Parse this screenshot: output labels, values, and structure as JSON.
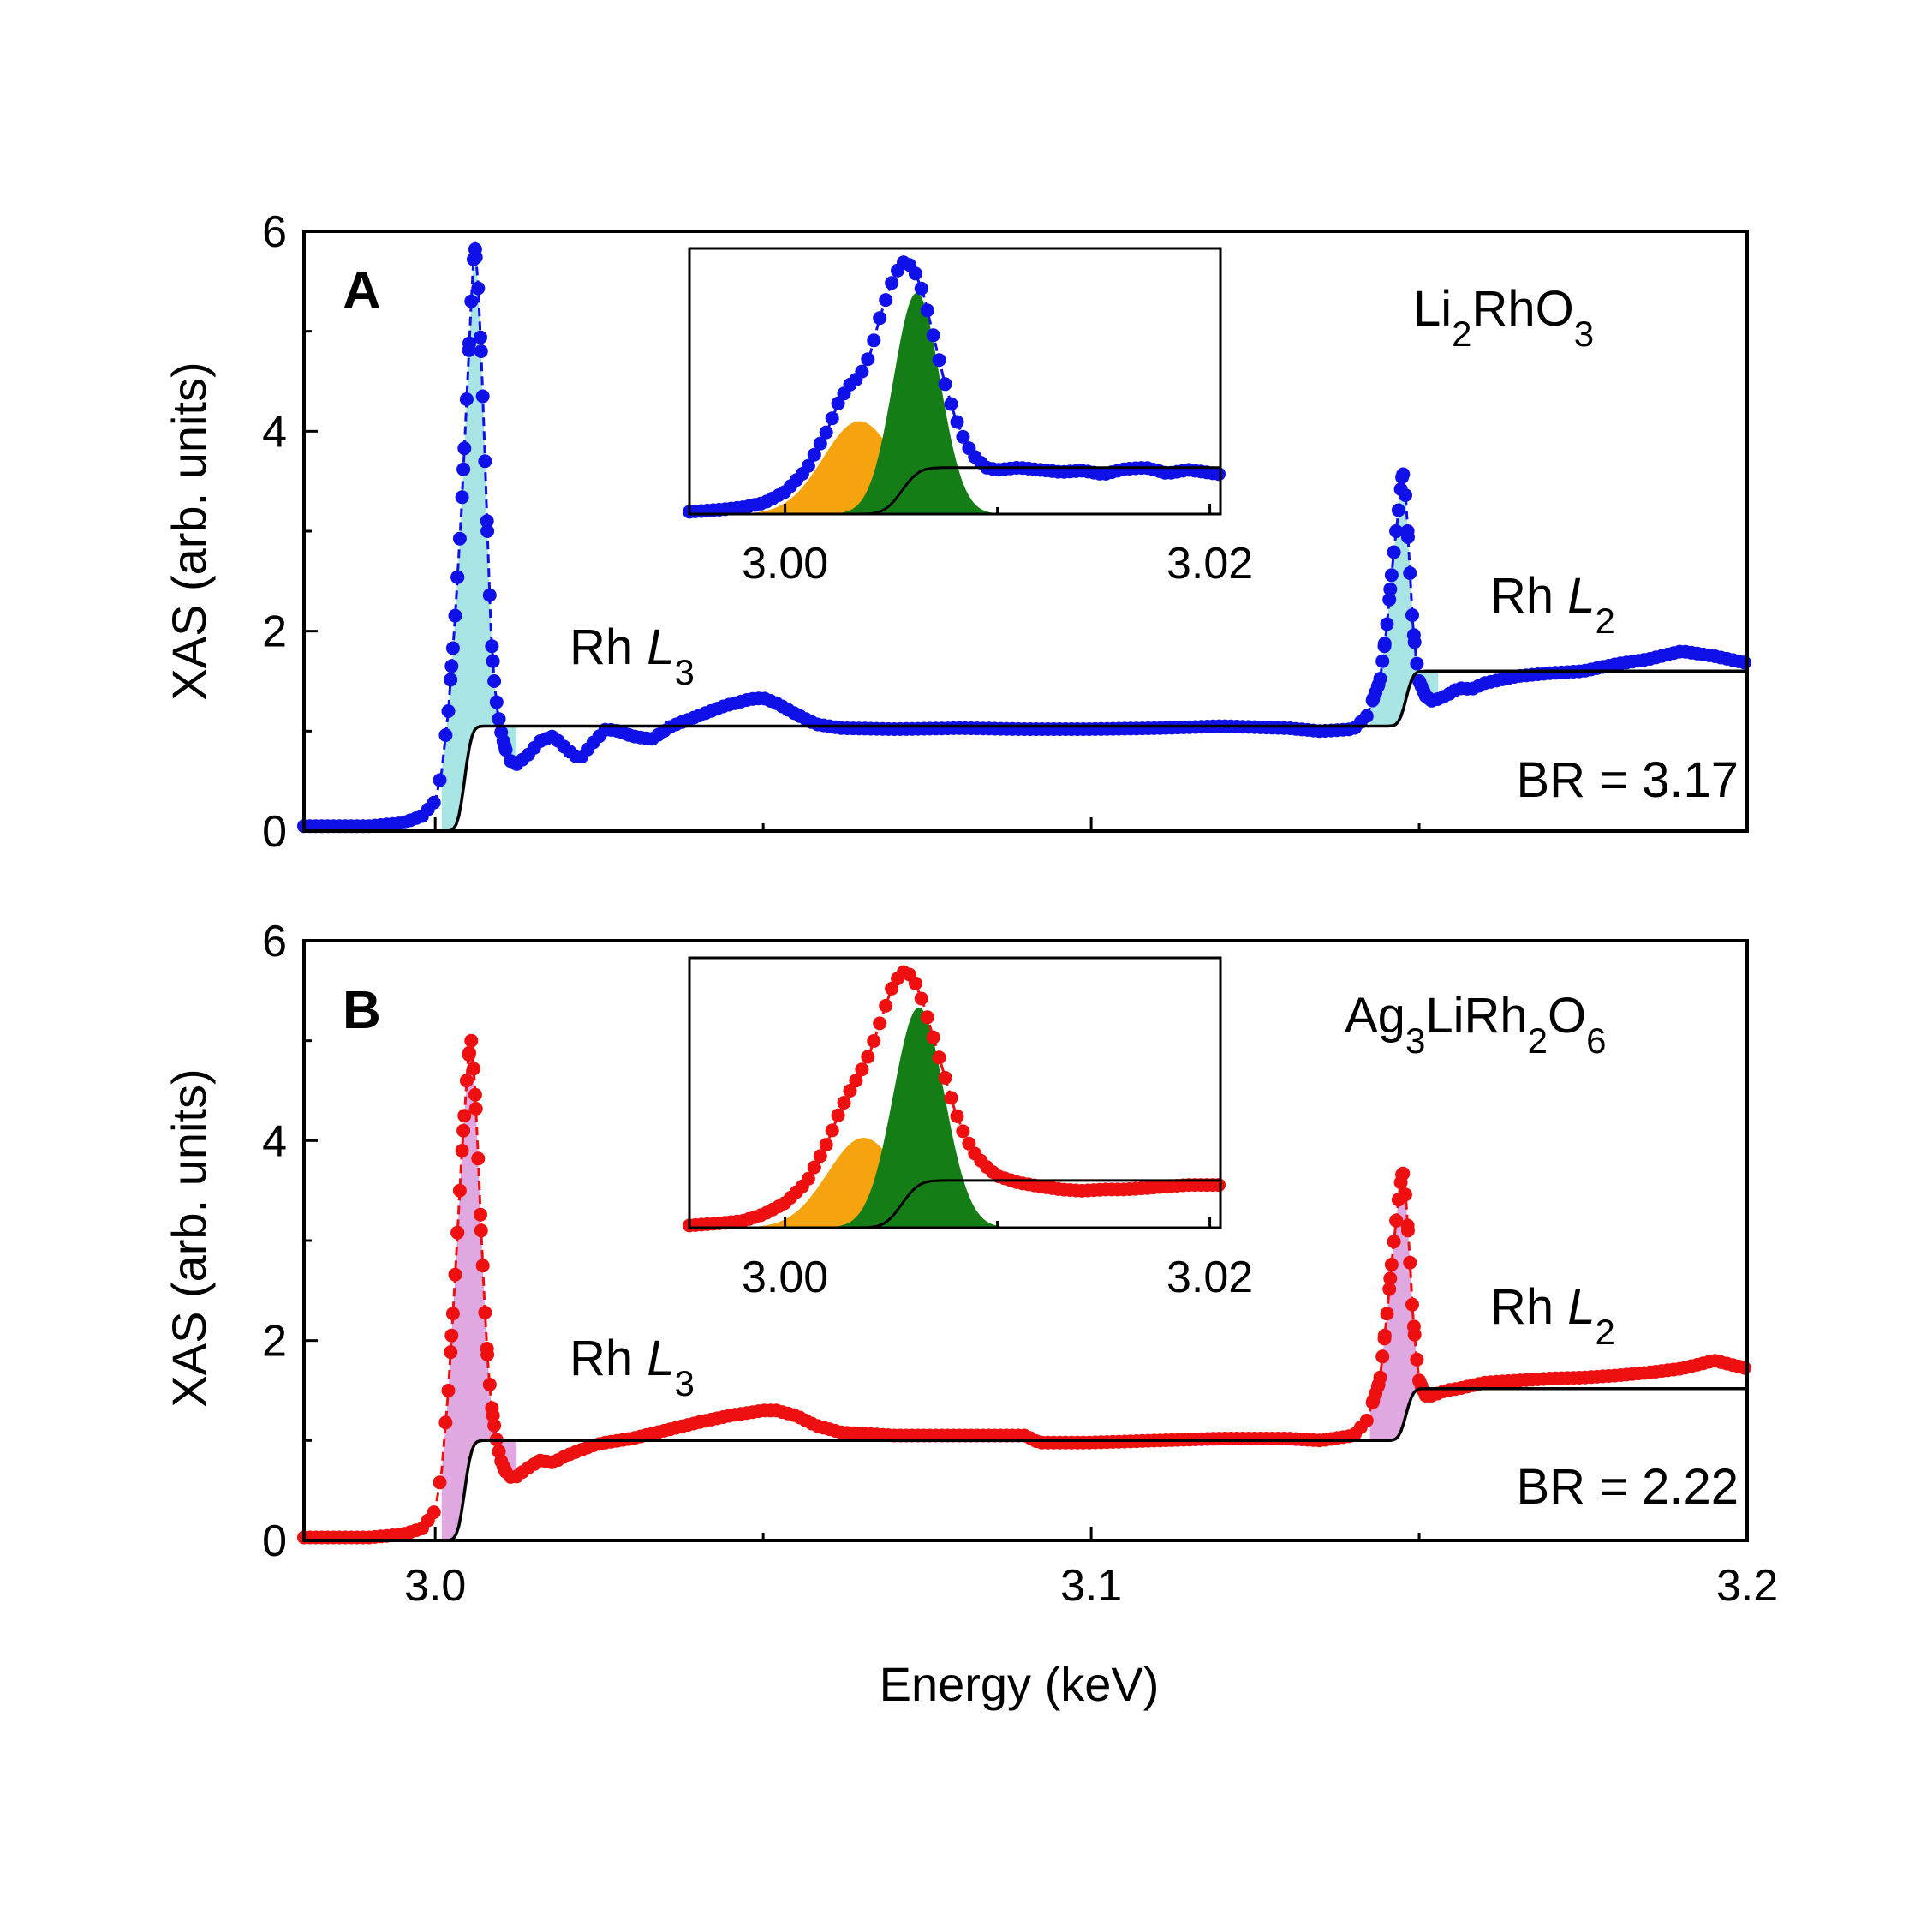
{
  "figure": {
    "xlabel": "Energy (keV)",
    "ylabel": "XAS (arb. units)"
  },
  "colors": {
    "panel_a_points": "#1010e8",
    "panel_a_fill": "#a8e4e4",
    "panel_b_points": "#ee1010",
    "panel_b_fill": "#e0a8e0",
    "step": "#000000",
    "inset_orange": "#f5a40f",
    "inset_green": "#157d15"
  },
  "chart_data": [
    {
      "type": "scatter",
      "panel": "A",
      "compound": {
        "base1": "Li",
        "sub1": "2",
        "base2": "RhO",
        "sub2": "3"
      },
      "edge_L3": {
        "prefix": "Rh ",
        "italic": "L",
        "sub": "3"
      },
      "edge_L2": {
        "prefix": "Rh ",
        "italic": "L",
        "sub": "2"
      },
      "branching_ratio_label": "BR = 3.17",
      "xlim": [
        2.98,
        3.2
      ],
      "ylim": [
        0,
        6
      ],
      "xticks": [
        "3.0",
        "3.1",
        "3.2"
      ],
      "xtick_values": [
        3.0,
        3.1,
        3.2
      ],
      "yticks": [
        "0",
        "2",
        "4",
        "6"
      ],
      "ytick_values": [
        0,
        2,
        4,
        6
      ],
      "series": [
        {
          "kind": "measured-xas",
          "x": [
            2.98,
            2.99,
            2.995,
            2.998,
            3.0,
            3.001,
            3.002,
            3.003,
            3.004,
            3.005,
            3.0055,
            3.006,
            3.0065,
            3.007,
            3.0075,
            3.008,
            3.0085,
            3.009,
            3.0095,
            3.01,
            3.011,
            3.012,
            3.014,
            3.016,
            3.018,
            3.02,
            3.022,
            3.024,
            3.026,
            3.028,
            3.03,
            3.033,
            3.036,
            3.04,
            3.044,
            3.048,
            3.05,
            3.052,
            3.055,
            3.058,
            3.062,
            3.07,
            3.08,
            3.09,
            3.1,
            3.11,
            3.12,
            3.13,
            3.135,
            3.14,
            3.142,
            3.144,
            3.145,
            3.146,
            3.147,
            3.1475,
            3.148,
            3.1485,
            3.149,
            3.1495,
            3.15,
            3.151,
            3.152,
            3.154,
            3.156,
            3.158,
            3.16,
            3.165,
            3.17,
            3.175,
            3.18,
            3.185,
            3.19,
            3.195,
            3.2
          ],
          "y": [
            0.05,
            0.05,
            0.08,
            0.15,
            0.3,
            0.6,
            1.2,
            2.1,
            3.2,
            4.6,
            5.3,
            5.9,
            5.5,
            4.8,
            3.9,
            2.9,
            2.0,
            1.5,
            1.2,
            1.0,
            0.75,
            0.65,
            0.75,
            0.9,
            0.95,
            0.82,
            0.72,
            0.88,
            1.02,
            1.0,
            0.95,
            0.92,
            1.05,
            1.15,
            1.25,
            1.32,
            1.33,
            1.28,
            1.17,
            1.07,
            1.03,
            1.02,
            1.03,
            1.02,
            1.02,
            1.03,
            1.05,
            1.03,
            1.0,
            1.02,
            1.15,
            1.5,
            2.0,
            2.7,
            3.3,
            3.6,
            3.3,
            2.7,
            2.1,
            1.75,
            1.5,
            1.35,
            1.3,
            1.35,
            1.43,
            1.42,
            1.48,
            1.55,
            1.58,
            1.6,
            1.67,
            1.72,
            1.8,
            1.75,
            1.68
          ]
        },
        {
          "kind": "step-background",
          "edges": [
            {
              "x0": 3.0045,
              "height": 1.05,
              "width": 0.0012
            },
            {
              "x0": 3.148,
              "height": 0.55,
              "width": 0.0012
            }
          ]
        }
      ],
      "inset": {
        "xlim": [
          2.9955,
          3.0205
        ],
        "ylim": [
          0,
          6
        ],
        "xticks": [
          "3.00",
          "3.02"
        ],
        "xtick_values": [
          3.0,
          3.02
        ],
        "measured_x": [
          2.9955,
          2.997,
          2.998,
          2.999,
          3.0,
          3.001,
          3.002,
          3.0025,
          3.003,
          3.0035,
          3.004,
          3.0045,
          3.005,
          3.0055,
          3.006,
          3.0065,
          3.007,
          3.0075,
          3.008,
          3.0085,
          3.009,
          3.0095,
          3.01,
          3.011,
          3.012,
          3.013,
          3.014,
          3.015,
          3.016,
          3.017,
          3.018,
          3.019,
          3.0205
        ],
        "measured_y": [
          0.05,
          0.1,
          0.15,
          0.25,
          0.5,
          1.0,
          1.9,
          2.5,
          2.9,
          3.1,
          3.6,
          4.5,
          5.2,
          5.7,
          5.6,
          5.0,
          4.0,
          3.0,
          2.2,
          1.6,
          1.25,
          1.05,
          1.0,
          1.05,
          1.0,
          0.95,
          0.98,
          0.9,
          1.02,
          1.05,
          0.92,
          1.0,
          0.9
        ],
        "peak_orange": {
          "center": 3.0035,
          "amplitude": 2.1,
          "sigma": 0.0017
        },
        "peak_green": {
          "center": 3.0062,
          "amplitude": 5.0,
          "sigma": 0.0011
        },
        "step": {
          "x0": 3.0055,
          "height": 1.05,
          "width": 0.0009
        }
      }
    },
    {
      "type": "scatter",
      "panel": "B",
      "compound": {
        "base1": "Ag",
        "sub1": "3",
        "base2": "LiRh",
        "sub2": "2",
        "base3": "O",
        "sub3": "6"
      },
      "edge_L3": {
        "prefix": "Rh ",
        "italic": "L",
        "sub": "3"
      },
      "edge_L2": {
        "prefix": "Rh ",
        "italic": "L",
        "sub": "2"
      },
      "branching_ratio_label": "BR = 2.22",
      "xlim": [
        2.98,
        3.2
      ],
      "ylim": [
        0,
        6
      ],
      "xticks": [
        "3.0",
        "3.1",
        "3.2"
      ],
      "xtick_values": [
        3.0,
        3.1,
        3.2
      ],
      "yticks": [
        "0",
        "2",
        "4",
        "6"
      ],
      "ytick_values": [
        0,
        2,
        4,
        6
      ],
      "series": [
        {
          "kind": "measured-xas",
          "x": [
            2.98,
            2.99,
            2.995,
            2.998,
            3.0,
            3.001,
            3.002,
            3.003,
            3.004,
            3.005,
            3.0055,
            3.006,
            3.0065,
            3.007,
            3.0075,
            3.008,
            3.0085,
            3.009,
            3.0095,
            3.01,
            3.011,
            3.012,
            3.014,
            3.016,
            3.018,
            3.02,
            3.022,
            3.024,
            3.026,
            3.03,
            3.035,
            3.04,
            3.045,
            3.05,
            3.052,
            3.055,
            3.058,
            3.062,
            3.07,
            3.08,
            3.09,
            3.092,
            3.1,
            3.11,
            3.12,
            3.13,
            3.135,
            3.14,
            3.142,
            3.144,
            3.145,
            3.146,
            3.147,
            3.1475,
            3.148,
            3.1485,
            3.149,
            3.1495,
            3.15,
            3.151,
            3.152,
            3.154,
            3.156,
            3.158,
            3.16,
            3.165,
            3.17,
            3.175,
            3.18,
            3.185,
            3.19,
            3.195,
            3.2
          ],
          "y": [
            0.03,
            0.03,
            0.06,
            0.12,
            0.3,
            0.7,
            1.5,
            2.6,
            3.8,
            4.8,
            5.0,
            4.6,
            3.9,
            3.1,
            2.4,
            1.8,
            1.4,
            1.15,
            0.95,
            0.8,
            0.65,
            0.62,
            0.72,
            0.8,
            0.78,
            0.85,
            0.9,
            0.95,
            0.98,
            1.02,
            1.1,
            1.18,
            1.25,
            1.3,
            1.3,
            1.25,
            1.15,
            1.08,
            1.05,
            1.05,
            1.05,
            0.98,
            0.98,
            1.0,
            1.02,
            1.02,
            1.0,
            1.05,
            1.2,
            1.6,
            2.2,
            2.9,
            3.5,
            3.7,
            3.4,
            2.9,
            2.3,
            1.9,
            1.6,
            1.45,
            1.45,
            1.5,
            1.52,
            1.55,
            1.58,
            1.6,
            1.62,
            1.63,
            1.65,
            1.68,
            1.72,
            1.8,
            1.72
          ]
        },
        {
          "kind": "step-background",
          "edges": [
            {
              "x0": 3.0045,
              "height": 1.0,
              "width": 0.0012
            },
            {
              "x0": 3.148,
              "height": 0.52,
              "width": 0.0012
            }
          ]
        }
      ],
      "inset": {
        "xlim": [
          2.9955,
          3.0205
        ],
        "ylim": [
          0,
          6
        ],
        "xticks": [
          "3.00",
          "3.02"
        ],
        "xtick_values": [
          3.0,
          3.02
        ],
        "measured_x": [
          2.9955,
          2.997,
          2.998,
          2.999,
          3.0,
          3.001,
          3.002,
          3.0025,
          3.003,
          3.0035,
          3.004,
          3.0045,
          3.005,
          3.0055,
          3.006,
          3.0065,
          3.007,
          3.0075,
          3.008,
          3.0085,
          3.009,
          3.0095,
          3.01,
          3.011,
          3.012,
          3.013,
          3.014,
          3.015,
          3.016,
          3.017,
          3.018,
          3.019,
          3.0205
        ],
        "measured_y": [
          0.05,
          0.1,
          0.15,
          0.3,
          0.55,
          1.0,
          1.9,
          2.5,
          3.0,
          3.4,
          3.9,
          4.6,
          5.3,
          5.7,
          5.6,
          5.0,
          4.2,
          3.4,
          2.6,
          2.0,
          1.6,
          1.35,
          1.15,
          1.0,
          0.92,
          0.85,
          0.82,
          0.85,
          0.85,
          0.88,
          0.92,
          0.95,
          0.95
        ],
        "peak_orange": {
          "center": 3.0037,
          "amplitude": 2.0,
          "sigma": 0.0017
        },
        "peak_green": {
          "center": 3.0063,
          "amplitude": 4.9,
          "sigma": 0.0012
        },
        "step": {
          "x0": 3.0055,
          "height": 1.05,
          "width": 0.0009
        }
      }
    }
  ]
}
